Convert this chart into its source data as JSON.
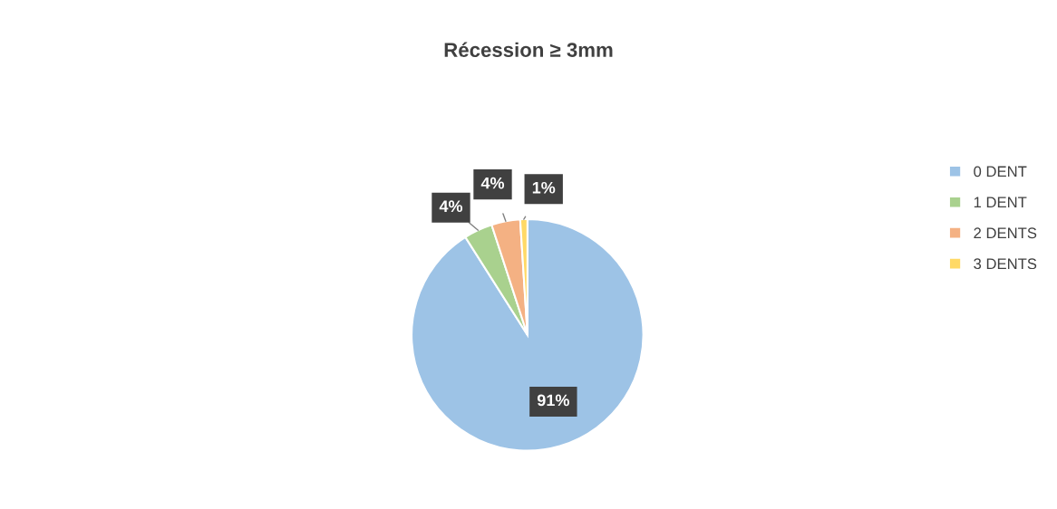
{
  "chart_data": {
    "type": "pie",
    "title": "Récession ≥ 3mm",
    "categories": [
      "0 DENT",
      "1 DENT",
      "2 DENTS",
      "3 DENTS"
    ],
    "values": [
      91,
      4,
      4,
      1
    ],
    "colors": [
      "#9dc3e6",
      "#a9d18e",
      "#f4b183",
      "#ffd966"
    ],
    "value_labels": [
      "91%",
      "4%",
      "4%",
      "1%"
    ],
    "legend": "right"
  }
}
